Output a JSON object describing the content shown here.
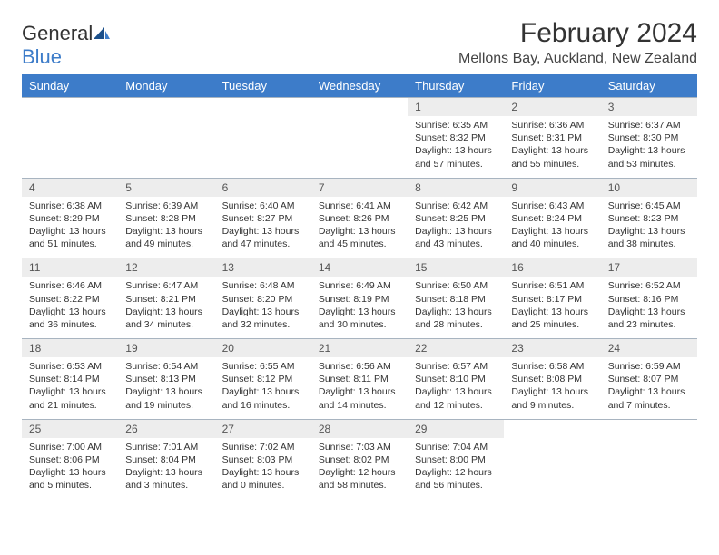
{
  "logo": {
    "word1": "General",
    "word2": "Blue"
  },
  "title": "February 2024",
  "subtitle": "Mellons Bay, Auckland, New Zealand",
  "colors": {
    "header_bg": "#3d7cc9",
    "header_text": "#ffffff",
    "daynum_bg": "#ededed",
    "cell_border": "#a8b4c0",
    "body_text": "#333333",
    "page_bg": "#ffffff"
  },
  "typography": {
    "title_size": 30,
    "subtitle_size": 16,
    "dayname_size": 13,
    "daynum_size": 12,
    "cell_size": 10.5
  },
  "day_names": [
    "Sunday",
    "Monday",
    "Tuesday",
    "Wednesday",
    "Thursday",
    "Friday",
    "Saturday"
  ],
  "weeks": [
    {
      "nums": [
        "",
        "",
        "",
        "",
        "1",
        "2",
        "3"
      ],
      "sunrise": [
        "",
        "",
        "",
        "",
        "Sunrise: 6:35 AM",
        "Sunrise: 6:36 AM",
        "Sunrise: 6:37 AM"
      ],
      "sunset": [
        "",
        "",
        "",
        "",
        "Sunset: 8:32 PM",
        "Sunset: 8:31 PM",
        "Sunset: 8:30 PM"
      ],
      "daylight1": [
        "",
        "",
        "",
        "",
        "Daylight: 13 hours",
        "Daylight: 13 hours",
        "Daylight: 13 hours"
      ],
      "daylight2": [
        "",
        "",
        "",
        "",
        "and 57 minutes.",
        "and 55 minutes.",
        "and 53 minutes."
      ]
    },
    {
      "nums": [
        "4",
        "5",
        "6",
        "7",
        "8",
        "9",
        "10"
      ],
      "sunrise": [
        "Sunrise: 6:38 AM",
        "Sunrise: 6:39 AM",
        "Sunrise: 6:40 AM",
        "Sunrise: 6:41 AM",
        "Sunrise: 6:42 AM",
        "Sunrise: 6:43 AM",
        "Sunrise: 6:45 AM"
      ],
      "sunset": [
        "Sunset: 8:29 PM",
        "Sunset: 8:28 PM",
        "Sunset: 8:27 PM",
        "Sunset: 8:26 PM",
        "Sunset: 8:25 PM",
        "Sunset: 8:24 PM",
        "Sunset: 8:23 PM"
      ],
      "daylight1": [
        "Daylight: 13 hours",
        "Daylight: 13 hours",
        "Daylight: 13 hours",
        "Daylight: 13 hours",
        "Daylight: 13 hours",
        "Daylight: 13 hours",
        "Daylight: 13 hours"
      ],
      "daylight2": [
        "and 51 minutes.",
        "and 49 minutes.",
        "and 47 minutes.",
        "and 45 minutes.",
        "and 43 minutes.",
        "and 40 minutes.",
        "and 38 minutes."
      ]
    },
    {
      "nums": [
        "11",
        "12",
        "13",
        "14",
        "15",
        "16",
        "17"
      ],
      "sunrise": [
        "Sunrise: 6:46 AM",
        "Sunrise: 6:47 AM",
        "Sunrise: 6:48 AM",
        "Sunrise: 6:49 AM",
        "Sunrise: 6:50 AM",
        "Sunrise: 6:51 AM",
        "Sunrise: 6:52 AM"
      ],
      "sunset": [
        "Sunset: 8:22 PM",
        "Sunset: 8:21 PM",
        "Sunset: 8:20 PM",
        "Sunset: 8:19 PM",
        "Sunset: 8:18 PM",
        "Sunset: 8:17 PM",
        "Sunset: 8:16 PM"
      ],
      "daylight1": [
        "Daylight: 13 hours",
        "Daylight: 13 hours",
        "Daylight: 13 hours",
        "Daylight: 13 hours",
        "Daylight: 13 hours",
        "Daylight: 13 hours",
        "Daylight: 13 hours"
      ],
      "daylight2": [
        "and 36 minutes.",
        "and 34 minutes.",
        "and 32 minutes.",
        "and 30 minutes.",
        "and 28 minutes.",
        "and 25 minutes.",
        "and 23 minutes."
      ]
    },
    {
      "nums": [
        "18",
        "19",
        "20",
        "21",
        "22",
        "23",
        "24"
      ],
      "sunrise": [
        "Sunrise: 6:53 AM",
        "Sunrise: 6:54 AM",
        "Sunrise: 6:55 AM",
        "Sunrise: 6:56 AM",
        "Sunrise: 6:57 AM",
        "Sunrise: 6:58 AM",
        "Sunrise: 6:59 AM"
      ],
      "sunset": [
        "Sunset: 8:14 PM",
        "Sunset: 8:13 PM",
        "Sunset: 8:12 PM",
        "Sunset: 8:11 PM",
        "Sunset: 8:10 PM",
        "Sunset: 8:08 PM",
        "Sunset: 8:07 PM"
      ],
      "daylight1": [
        "Daylight: 13 hours",
        "Daylight: 13 hours",
        "Daylight: 13 hours",
        "Daylight: 13 hours",
        "Daylight: 13 hours",
        "Daylight: 13 hours",
        "Daylight: 13 hours"
      ],
      "daylight2": [
        "and 21 minutes.",
        "and 19 minutes.",
        "and 16 minutes.",
        "and 14 minutes.",
        "and 12 minutes.",
        "and 9 minutes.",
        "and 7 minutes."
      ]
    },
    {
      "nums": [
        "25",
        "26",
        "27",
        "28",
        "29",
        "",
        ""
      ],
      "sunrise": [
        "Sunrise: 7:00 AM",
        "Sunrise: 7:01 AM",
        "Sunrise: 7:02 AM",
        "Sunrise: 7:03 AM",
        "Sunrise: 7:04 AM",
        "",
        ""
      ],
      "sunset": [
        "Sunset: 8:06 PM",
        "Sunset: 8:04 PM",
        "Sunset: 8:03 PM",
        "Sunset: 8:02 PM",
        "Sunset: 8:00 PM",
        "",
        ""
      ],
      "daylight1": [
        "Daylight: 13 hours",
        "Daylight: 13 hours",
        "Daylight: 13 hours",
        "Daylight: 12 hours",
        "Daylight: 12 hours",
        "",
        ""
      ],
      "daylight2": [
        "and 5 minutes.",
        "and 3 minutes.",
        "and 0 minutes.",
        "and 58 minutes.",
        "and 56 minutes.",
        "",
        ""
      ]
    }
  ]
}
